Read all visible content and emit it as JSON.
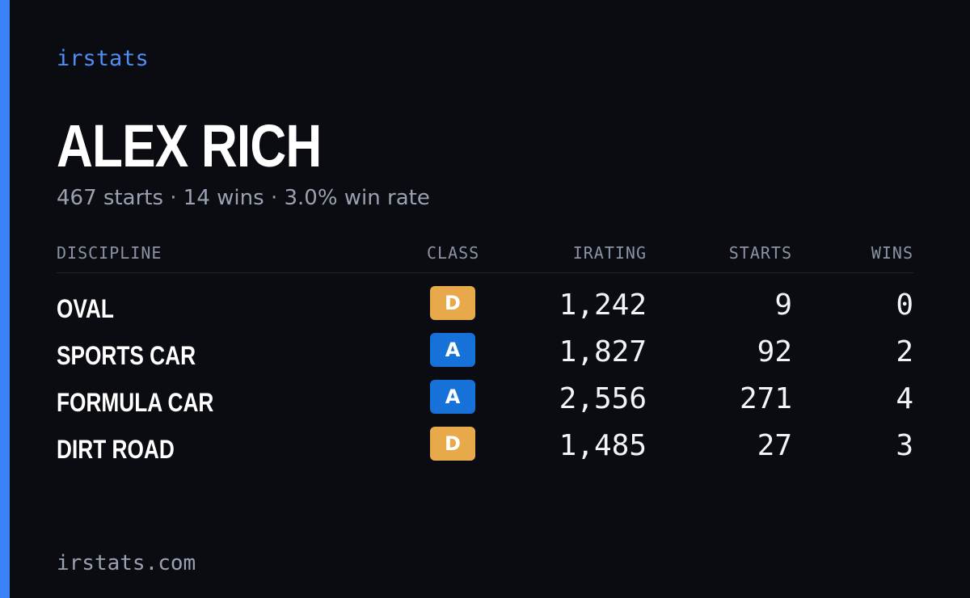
{
  "brand": "irstats",
  "driver": {
    "name": "ALEX RICH"
  },
  "summary": {
    "starts": "467 starts",
    "wins": "14 wins",
    "win_rate": "3.0% win rate",
    "separator": "·"
  },
  "table": {
    "headers": {
      "discipline": "DISCIPLINE",
      "class": "CLASS",
      "irating": "IRATING",
      "starts": "STARTS",
      "wins": "WINS"
    },
    "rows": [
      {
        "discipline": "OVAL",
        "class": "D",
        "class_color": "#e8a94a",
        "irating": "1,242",
        "starts": "9",
        "wins": "0"
      },
      {
        "discipline": "SPORTS CAR",
        "class": "A",
        "class_color": "#1672d8",
        "irating": "1,827",
        "starts": "92",
        "wins": "2"
      },
      {
        "discipline": "FORMULA CAR",
        "class": "A",
        "class_color": "#1672d8",
        "irating": "2,556",
        "starts": "271",
        "wins": "4"
      },
      {
        "discipline": "DIRT ROAD",
        "class": "D",
        "class_color": "#e8a94a",
        "irating": "1,485",
        "starts": "27",
        "wins": "3"
      }
    ]
  },
  "footer": {
    "url": "irstats.com"
  },
  "colors": {
    "background": "#0a0c12",
    "accent": "#3b82f6",
    "class_a": "#1672d8",
    "class_d": "#e8a94a"
  }
}
